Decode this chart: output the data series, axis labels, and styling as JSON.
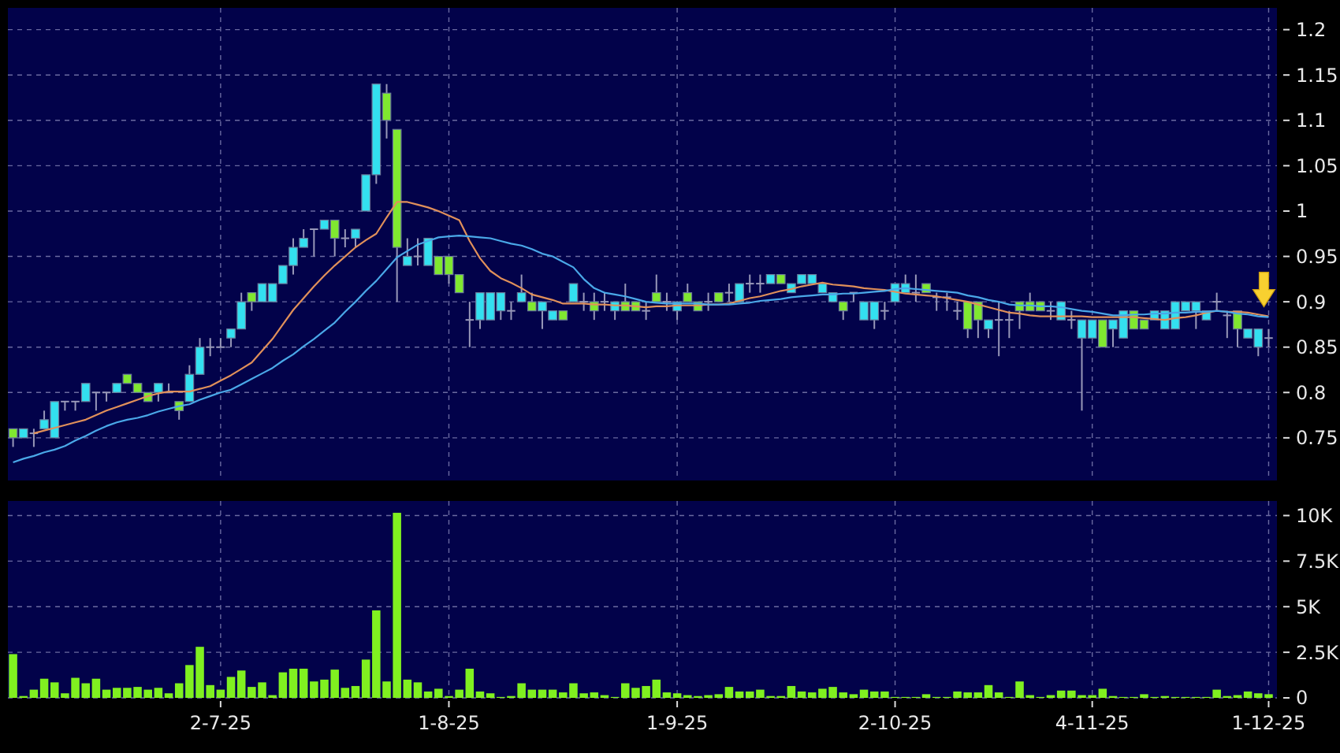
{
  "chart_data": [
    {
      "type": "candlestick",
      "categories": [
        null,
        null,
        null,
        null,
        null,
        null,
        null,
        null,
        null,
        null,
        null,
        null,
        null,
        null,
        null,
        null,
        null,
        null,
        null,
        null,
        null,
        null,
        null,
        null,
        null,
        null,
        null,
        null,
        null,
        null,
        null,
        null,
        null,
        null,
        null,
        null,
        null,
        null,
        null,
        null,
        null,
        null,
        null,
        null,
        null,
        null,
        null,
        null,
        null,
        null,
        null,
        null,
        null,
        null,
        null,
        null,
        null,
        null,
        null,
        null,
        null,
        null,
        null,
        null,
        null,
        null,
        null,
        null,
        null,
        null,
        null,
        null,
        null,
        null,
        null,
        null,
        null,
        null,
        null,
        null,
        null,
        null,
        null,
        null,
        null,
        null,
        null,
        null,
        null,
        null,
        null,
        null,
        null,
        null,
        null,
        null,
        null,
        null,
        null,
        null,
        null,
        null,
        null,
        null,
        null,
        null,
        null,
        null,
        null,
        null,
        null,
        null,
        null,
        null,
        null,
        null,
        null,
        null,
        null,
        null,
        null,
        null
      ],
      "ohlc": [
        [
          0.76,
          0.76,
          0.74,
          0.75
        ],
        [
          0.75,
          0.76,
          0.75,
          0.76
        ],
        [
          0.755,
          0.76,
          0.74,
          0.755
        ],
        [
          0.76,
          0.78,
          0.76,
          0.77
        ],
        [
          0.75,
          0.79,
          0.75,
          0.79
        ],
        [
          0.79,
          0.79,
          0.78,
          0.79
        ],
        [
          0.79,
          0.79,
          0.78,
          0.79
        ],
        [
          0.79,
          0.81,
          0.79,
          0.81
        ],
        [
          0.8,
          0.8,
          0.78,
          0.8
        ],
        [
          0.8,
          0.8,
          0.79,
          0.8
        ],
        [
          0.8,
          0.81,
          0.8,
          0.81
        ],
        [
          0.82,
          0.82,
          0.81,
          0.81
        ],
        [
          0.81,
          0.81,
          0.8,
          0.8
        ],
        [
          0.8,
          0.8,
          0.79,
          0.79
        ],
        [
          0.8,
          0.81,
          0.79,
          0.81
        ],
        [
          0.8,
          0.81,
          0.8,
          0.8
        ],
        [
          0.79,
          0.79,
          0.77,
          0.78
        ],
        [
          0.79,
          0.83,
          0.79,
          0.82
        ],
        [
          0.82,
          0.86,
          0.82,
          0.85
        ],
        [
          0.85,
          0.86,
          0.84,
          0.85
        ],
        [
          0.85,
          0.86,
          0.85,
          0.85
        ],
        [
          0.86,
          0.87,
          0.85,
          0.87
        ],
        [
          0.87,
          0.91,
          0.87,
          0.9
        ],
        [
          0.91,
          0.91,
          0.89,
          0.9
        ],
        [
          0.9,
          0.92,
          0.9,
          0.92
        ],
        [
          0.9,
          0.92,
          0.9,
          0.92
        ],
        [
          0.92,
          0.94,
          0.92,
          0.94
        ],
        [
          0.94,
          0.97,
          0.93,
          0.96
        ],
        [
          0.96,
          0.98,
          0.96,
          0.97
        ],
        [
          0.98,
          0.98,
          0.95,
          0.98
        ],
        [
          0.98,
          0.99,
          0.98,
          0.99
        ],
        [
          0.99,
          0.99,
          0.95,
          0.97
        ],
        [
          0.97,
          0.98,
          0.96,
          0.97
        ],
        [
          0.97,
          0.98,
          0.96,
          0.98
        ],
        [
          1.0,
          1.04,
          1.0,
          1.04
        ],
        [
          1.04,
          1.14,
          1.03,
          1.14
        ],
        [
          1.13,
          1.14,
          1.08,
          1.1
        ],
        [
          1.09,
          1.09,
          0.9,
          0.96
        ],
        [
          0.94,
          0.97,
          0.94,
          0.95
        ],
        [
          0.95,
          0.97,
          0.94,
          0.95
        ],
        [
          0.94,
          0.97,
          0.94,
          0.97
        ],
        [
          0.95,
          0.95,
          0.93,
          0.93
        ],
        [
          0.95,
          0.95,
          0.92,
          0.93
        ],
        [
          0.93,
          0.93,
          0.91,
          0.91
        ],
        [
          0.88,
          0.9,
          0.85,
          0.88
        ],
        [
          0.88,
          0.91,
          0.87,
          0.91
        ],
        [
          0.88,
          0.91,
          0.88,
          0.91
        ],
        [
          0.89,
          0.91,
          0.88,
          0.91
        ],
        [
          0.89,
          0.9,
          0.88,
          0.89
        ],
        [
          0.9,
          0.93,
          0.9,
          0.91
        ],
        [
          0.9,
          0.91,
          0.89,
          0.89
        ],
        [
          0.89,
          0.9,
          0.87,
          0.9
        ],
        [
          0.88,
          0.89,
          0.88,
          0.89
        ],
        [
          0.89,
          0.89,
          0.88,
          0.88
        ],
        [
          0.9,
          0.92,
          0.9,
          0.92
        ],
        [
          0.9,
          0.91,
          0.89,
          0.9
        ],
        [
          0.9,
          0.91,
          0.88,
          0.89
        ],
        [
          0.9,
          0.91,
          0.89,
          0.9
        ],
        [
          0.89,
          0.9,
          0.88,
          0.9
        ],
        [
          0.9,
          0.92,
          0.89,
          0.89
        ],
        [
          0.9,
          0.9,
          0.89,
          0.89
        ],
        [
          0.89,
          0.9,
          0.88,
          0.89
        ],
        [
          0.91,
          0.93,
          0.9,
          0.9
        ],
        [
          0.9,
          0.91,
          0.89,
          0.9
        ],
        [
          0.89,
          0.9,
          0.88,
          0.9
        ],
        [
          0.91,
          0.92,
          0.9,
          0.9
        ],
        [
          0.9,
          0.9,
          0.89,
          0.89
        ],
        [
          0.9,
          0.91,
          0.89,
          0.9
        ],
        [
          0.91,
          0.91,
          0.9,
          0.9
        ],
        [
          0.91,
          0.92,
          0.9,
          0.91
        ],
        [
          0.9,
          0.92,
          0.9,
          0.92
        ],
        [
          0.92,
          0.93,
          0.91,
          0.92
        ],
        [
          0.92,
          0.93,
          0.91,
          0.92
        ],
        [
          0.92,
          0.93,
          0.92,
          0.93
        ],
        [
          0.93,
          0.93,
          0.92,
          0.92
        ],
        [
          0.91,
          0.92,
          0.91,
          0.92
        ],
        [
          0.92,
          0.93,
          0.92,
          0.93
        ],
        [
          0.92,
          0.93,
          0.92,
          0.93
        ],
        [
          0.91,
          0.92,
          0.91,
          0.92
        ],
        [
          0.9,
          0.91,
          0.9,
          0.91
        ],
        [
          0.9,
          0.9,
          0.88,
          0.89
        ],
        [
          0.91,
          0.91,
          0.9,
          0.91
        ],
        [
          0.88,
          0.9,
          0.88,
          0.9
        ],
        [
          0.88,
          0.9,
          0.87,
          0.9
        ],
        [
          0.89,
          0.9,
          0.88,
          0.89
        ],
        [
          0.9,
          0.92,
          0.9,
          0.92
        ],
        [
          0.91,
          0.93,
          0.91,
          0.92
        ],
        [
          0.91,
          0.93,
          0.9,
          0.91
        ],
        [
          0.92,
          0.92,
          0.91,
          0.91
        ],
        [
          0.905,
          0.91,
          0.89,
          0.905
        ],
        [
          0.905,
          0.91,
          0.89,
          0.905
        ],
        [
          0.89,
          0.9,
          0.88,
          0.89
        ],
        [
          0.9,
          0.9,
          0.86,
          0.87
        ],
        [
          0.9,
          0.9,
          0.86,
          0.88
        ],
        [
          0.87,
          0.88,
          0.86,
          0.88
        ],
        [
          0.88,
          0.9,
          0.84,
          0.88
        ],
        [
          0.88,
          0.89,
          0.86,
          0.88
        ],
        [
          0.9,
          0.9,
          0.87,
          0.89
        ],
        [
          0.9,
          0.91,
          0.89,
          0.89
        ],
        [
          0.9,
          0.9,
          0.89,
          0.89
        ],
        [
          0.89,
          0.9,
          0.88,
          0.89
        ],
        [
          0.88,
          0.9,
          0.88,
          0.9
        ],
        [
          0.88,
          0.89,
          0.87,
          0.88
        ],
        [
          0.86,
          0.88,
          0.78,
          0.88
        ],
        [
          0.86,
          0.88,
          0.86,
          0.88
        ],
        [
          0.88,
          0.88,
          0.85,
          0.85
        ],
        [
          0.87,
          0.88,
          0.85,
          0.88
        ],
        [
          0.86,
          0.89,
          0.86,
          0.89
        ],
        [
          0.89,
          0.89,
          0.87,
          0.87
        ],
        [
          0.88,
          0.88,
          0.87,
          0.87
        ],
        [
          0.88,
          0.89,
          0.88,
          0.89
        ],
        [
          0.87,
          0.89,
          0.87,
          0.89
        ],
        [
          0.87,
          0.9,
          0.87,
          0.9
        ],
        [
          0.89,
          0.9,
          0.89,
          0.9
        ],
        [
          0.89,
          0.9,
          0.87,
          0.9
        ],
        [
          0.88,
          0.89,
          0.88,
          0.89
        ],
        [
          0.9,
          0.91,
          0.89,
          0.9
        ],
        [
          0.885,
          0.89,
          0.86,
          0.885
        ],
        [
          0.89,
          0.89,
          0.85,
          0.87
        ],
        [
          0.86,
          0.87,
          0.86,
          0.87
        ],
        [
          0.85,
          0.87,
          0.84,
          0.87
        ],
        [
          0.86,
          0.87,
          0.85,
          0.86
        ]
      ],
      "colors": [
        "#80e830",
        "#33e0f0",
        "#9898b8",
        "#33e0f0",
        "#33e0f0",
        "#9898b8",
        "#9898b8",
        "#33e0f0",
        "#9898b8",
        "#9898b8",
        "#33e0f0",
        "#80e830",
        "#80e830",
        "#80e830",
        "#33e0f0",
        "#9898b8",
        "#80e830",
        "#33e0f0",
        "#33e0f0",
        "#9898b8",
        "#9898b8",
        "#33e0f0",
        "#33e0f0",
        "#80e830",
        "#33e0f0",
        "#33e0f0",
        "#33e0f0",
        "#33e0f0",
        "#33e0f0",
        "#9898b8",
        "#33e0f0",
        "#80e830",
        "#9898b8",
        "#33e0f0",
        "#33e0f0",
        "#33e0f0",
        "#80e830",
        "#80e830",
        "#33e0f0",
        "#9898b8",
        "#33e0f0",
        "#80e830",
        "#80e830",
        "#80e830",
        "#9898b8",
        "#33e0f0",
        "#33e0f0",
        "#33e0f0",
        "#9898b8",
        "#33e0f0",
        "#80e830",
        "#33e0f0",
        "#33e0f0",
        "#80e830",
        "#33e0f0",
        "#9898b8",
        "#80e830",
        "#9898b8",
        "#33e0f0",
        "#80e830",
        "#80e830",
        "#9898b8",
        "#80e830",
        "#9898b8",
        "#33e0f0",
        "#80e830",
        "#80e830",
        "#9898b8",
        "#80e830",
        "#9898b8",
        "#33e0f0",
        "#9898b8",
        "#9898b8",
        "#33e0f0",
        "#80e830",
        "#33e0f0",
        "#33e0f0",
        "#33e0f0",
        "#33e0f0",
        "#33e0f0",
        "#80e830",
        "#9898b8",
        "#33e0f0",
        "#33e0f0",
        "#9898b8",
        "#33e0f0",
        "#33e0f0",
        "#9898b8",
        "#80e830",
        "#9898b8",
        "#9898b8",
        "#9898b8",
        "#80e830",
        "#80e830",
        "#33e0f0",
        "#9898b8",
        "#9898b8",
        "#80e830",
        "#80e830",
        "#80e830",
        "#9898b8",
        "#33e0f0",
        "#9898b8",
        "#33e0f0",
        "#33e0f0",
        "#80e830",
        "#33e0f0",
        "#33e0f0",
        "#80e830",
        "#80e830",
        "#33e0f0",
        "#33e0f0",
        "#33e0f0",
        "#33e0f0",
        "#33e0f0",
        "#33e0f0",
        "#9898b8",
        "#9898b8",
        "#80e830",
        "#33e0f0",
        "#33e0f0",
        "#9898b8"
      ],
      "series": [
        {
          "type": "line",
          "color": "#e0905a",
          "values": [
            null,
            null,
            0.755,
            0.758,
            0.761,
            0.764,
            0.767,
            0.77,
            0.775,
            0.78,
            0.784,
            0.788,
            0.792,
            0.796,
            0.799,
            0.801,
            0.801,
            0.801,
            0.804,
            0.807,
            0.813,
            0.819,
            0.826,
            0.833,
            0.846,
            0.859,
            0.875,
            0.891,
            0.904,
            0.917,
            0.929,
            0.94,
            0.95,
            0.96,
            0.968,
            0.975,
            0.993,
            1.01,
            1.01,
            1.007,
            1.004,
            1.0,
            0.995,
            0.99,
            0.967,
            0.948,
            0.934,
            0.926,
            0.921,
            0.915,
            0.908,
            0.905,
            0.902,
            0.898,
            0.898,
            0.898,
            0.897,
            0.897,
            0.896,
            0.896,
            0.895,
            0.894,
            0.895,
            0.895,
            0.896,
            0.896,
            0.896,
            0.897,
            0.897,
            0.898,
            0.901,
            0.904,
            0.906,
            0.909,
            0.912,
            0.914,
            0.917,
            0.919,
            0.921,
            0.919,
            0.918,
            0.917,
            0.915,
            0.914,
            0.913,
            0.911,
            0.909,
            0.908,
            0.907,
            0.906,
            0.904,
            0.902,
            0.9,
            0.897,
            0.894,
            0.891,
            0.888,
            0.887,
            0.885,
            0.884,
            0.884,
            0.884,
            0.884,
            0.884,
            0.883,
            0.883,
            0.883,
            0.883,
            0.883,
            0.882,
            0.881,
            0.88,
            0.882,
            0.883,
            0.885,
            0.888,
            0.89,
            0.889,
            0.889,
            0.888,
            0.886,
            0.884
          ]
        },
        {
          "type": "line",
          "color": "#4aa8e8",
          "values": [
            0.723,
            0.727,
            0.73,
            0.734,
            0.737,
            0.741,
            0.747,
            0.752,
            0.758,
            0.763,
            0.767,
            0.77,
            0.772,
            0.775,
            0.779,
            0.782,
            0.785,
            0.787,
            0.792,
            0.796,
            0.8,
            0.803,
            0.809,
            0.815,
            0.821,
            0.827,
            0.835,
            0.842,
            0.851,
            0.859,
            0.868,
            0.877,
            0.889,
            0.9,
            0.912,
            0.923,
            0.936,
            0.949,
            0.956,
            0.963,
            0.967,
            0.971,
            0.972,
            0.973,
            0.972,
            0.971,
            0.97,
            0.967,
            0.964,
            0.962,
            0.958,
            0.953,
            0.95,
            0.944,
            0.938,
            0.925,
            0.915,
            0.91,
            0.908,
            0.906,
            0.903,
            0.9,
            0.899,
            0.898,
            0.898,
            0.898,
            0.898,
            0.897,
            0.897,
            0.897,
            0.898,
            0.899,
            0.901,
            0.902,
            0.903,
            0.905,
            0.906,
            0.907,
            0.908,
            0.908,
            0.909,
            0.909,
            0.91,
            0.911,
            0.912,
            0.914,
            0.915,
            0.914,
            0.913,
            0.912,
            0.911,
            0.91,
            0.907,
            0.905,
            0.902,
            0.9,
            0.897,
            0.896,
            0.896,
            0.895,
            0.895,
            0.894,
            0.892,
            0.89,
            0.889,
            0.887,
            0.885,
            0.885,
            0.886,
            0.886,
            0.887,
            0.887,
            0.888,
            0.888,
            0.889,
            0.889,
            0.89,
            0.889,
            0.887,
            0.886,
            0.884,
            0.883
          ]
        }
      ],
      "ylim": [
        0.703,
        1.224
      ],
      "yticks": [
        0.75,
        0.8,
        0.85,
        0.9,
        0.95,
        1,
        1.05,
        1.1,
        1.15,
        1.2
      ],
      "grid": true
    },
    {
      "type": "bar",
      "color": "#80f020",
      "categories": [
        null,
        null,
        null,
        null,
        null,
        null,
        null,
        null,
        null,
        null,
        null,
        null,
        null,
        null,
        null,
        null,
        null,
        null,
        null,
        null,
        "2-7-25",
        null,
        null,
        null,
        null,
        null,
        null,
        null,
        null,
        null,
        null,
        null,
        null,
        null,
        null,
        null,
        null,
        null,
        null,
        null,
        null,
        null,
        "1-8-25",
        null,
        null,
        null,
        null,
        null,
        null,
        null,
        null,
        null,
        null,
        null,
        null,
        null,
        null,
        null,
        null,
        null,
        null,
        null,
        null,
        null,
        "1-9-25",
        null,
        null,
        null,
        null,
        null,
        null,
        null,
        null,
        null,
        null,
        null,
        null,
        null,
        null,
        null,
        null,
        null,
        null,
        null,
        null,
        "2-10-25",
        null,
        null,
        null,
        null,
        null,
        null,
        null,
        null,
        null,
        null,
        null,
        null,
        null,
        null,
        null,
        null,
        null,
        null,
        "4-11-25",
        null,
        null,
        null,
        null,
        null,
        null,
        null,
        null,
        null,
        null,
        null,
        null,
        null,
        null,
        null,
        null,
        "1-12-25"
      ],
      "values": [
        2400,
        100,
        450,
        1050,
        850,
        250,
        1100,
        800,
        1050,
        450,
        550,
        550,
        600,
        450,
        550,
        250,
        800,
        1800,
        2800,
        700,
        450,
        1150,
        1500,
        600,
        850,
        150,
        1400,
        1600,
        1600,
        900,
        1000,
        1550,
        550,
        650,
        2100,
        4800,
        900,
        10150,
        1000,
        850,
        350,
        500,
        100,
        450,
        1600,
        350,
        250,
        50,
        100,
        800,
        450,
        450,
        450,
        300,
        800,
        250,
        300,
        150,
        50,
        800,
        550,
        650,
        1000,
        300,
        250,
        150,
        100,
        150,
        200,
        600,
        350,
        350,
        450,
        100,
        100,
        650,
        350,
        300,
        500,
        600,
        300,
        200,
        450,
        350,
        350,
        50,
        50,
        50,
        200,
        50,
        50,
        350,
        300,
        300,
        700,
        300,
        50,
        900,
        150,
        50,
        150,
        400,
        400,
        150,
        150,
        500,
        100,
        50,
        50,
        200,
        50,
        100,
        50,
        50,
        50,
        50,
        450,
        100,
        150,
        350,
        250,
        200
      ],
      "ylim": [
        0,
        10800
      ],
      "yticks": [
        {
          "value": 0,
          "label": "0"
        },
        {
          "value": 2500,
          "label": "2.5K"
        },
        {
          "value": 5000,
          "label": "5K"
        },
        {
          "value": 7500,
          "label": "7.5K"
        },
        {
          "value": 10000,
          "label": "10K"
        }
      ],
      "grid": true
    }
  ]
}
